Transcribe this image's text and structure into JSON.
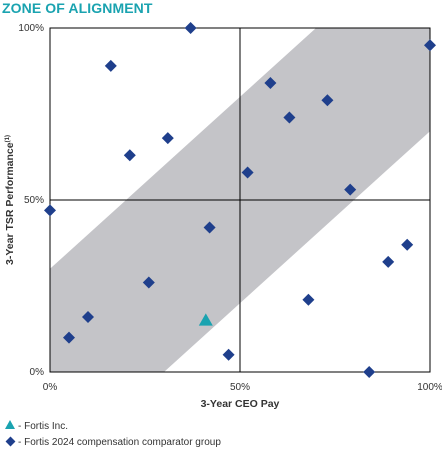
{
  "title": "ZONE OF ALIGNMENT",
  "legend": {
    "company": "- Fortis Inc.",
    "peers": "- Fortis 2024 compensation comparator group"
  },
  "colors": {
    "title": "#1aa3b0",
    "company": "#1aa3b0",
    "peers": "#1f3f8c",
    "band": "#c4c4c8",
    "axis": "#000000"
  },
  "chart_data": {
    "type": "scatter",
    "xlabel": "3-Year CEO Pay",
    "ylabel": "3-Year TSR Performance",
    "ylabel_sup": "(1)",
    "xlim": [
      0,
      100
    ],
    "ylim": [
      0,
      100
    ],
    "x_ticks": [
      "0%",
      "50%",
      "100%"
    ],
    "y_ticks": [
      "0%",
      "50%",
      "100%"
    ],
    "zone_of_alignment": {
      "lower_edge": [
        [
          30,
          0
        ],
        [
          100,
          70
        ]
      ],
      "upper_edge": [
        [
          0,
          30
        ],
        [
          70,
          100
        ]
      ]
    },
    "series": [
      {
        "name": "- Fortis Inc.",
        "marker": "triangle",
        "points": [
          {
            "x": 41,
            "y": 15
          }
        ]
      },
      {
        "name": "- Fortis 2024 compensation comparator group",
        "marker": "diamond",
        "points": [
          {
            "x": 0,
            "y": 47
          },
          {
            "x": 5,
            "y": 10
          },
          {
            "x": 10,
            "y": 16
          },
          {
            "x": 16,
            "y": 89
          },
          {
            "x": 21,
            "y": 63
          },
          {
            "x": 26,
            "y": 26
          },
          {
            "x": 31,
            "y": 68
          },
          {
            "x": 37,
            "y": 100
          },
          {
            "x": 42,
            "y": 42
          },
          {
            "x": 47,
            "y": 5
          },
          {
            "x": 52,
            "y": 58
          },
          {
            "x": 58,
            "y": 84
          },
          {
            "x": 63,
            "y": 74
          },
          {
            "x": 68,
            "y": 21
          },
          {
            "x": 73,
            "y": 79
          },
          {
            "x": 79,
            "y": 53
          },
          {
            "x": 84,
            "y": 0
          },
          {
            "x": 89,
            "y": 32
          },
          {
            "x": 94,
            "y": 37
          },
          {
            "x": 100,
            "y": 95
          }
        ]
      }
    ]
  }
}
